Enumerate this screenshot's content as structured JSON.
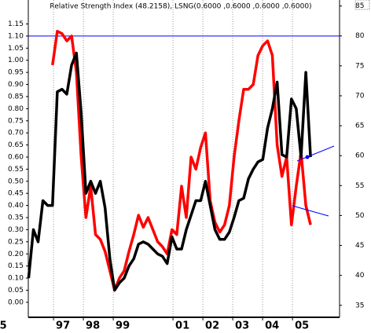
{
  "chart_data": {
    "type": "line",
    "title": "Relative Strength Index (48.2158), LSNG(0.6000 ,0.6000 ,0.6000 ,0.6000)",
    "x": [
      1995.85,
      1996.01,
      1996.17,
      1996.33,
      1996.49,
      1996.65,
      1996.81,
      1996.97,
      1997.13,
      1997.29,
      1997.45,
      1997.61,
      1997.77,
      1997.93,
      1998.09,
      1998.25,
      1998.41,
      1998.57,
      1998.73,
      1998.89,
      1999.05,
      1999.21,
      1999.37,
      1999.53,
      1999.69,
      1999.85,
      2000.01,
      2000.17,
      2000.33,
      2000.49,
      2000.65,
      2000.81,
      2000.97,
      2001.13,
      2001.29,
      2001.45,
      2001.61,
      2001.77,
      2001.93,
      2002.09,
      2002.25,
      2002.41,
      2002.57,
      2002.73,
      2002.89,
      2003.05,
      2003.21,
      2003.37,
      2003.53,
      2003.69,
      2003.85,
      2004.01,
      2004.17,
      2004.33,
      2004.49,
      2004.65,
      2004.81,
      2004.97,
      2005.13,
      2005.29
    ],
    "series": [
      {
        "color": "#ff0000",
        "values": [
          null,
          null,
          null,
          null,
          null,
          0.98,
          1.12,
          1.11,
          1.08,
          1.1,
          0.95,
          0.6,
          0.35,
          0.48,
          0.28,
          0.26,
          0.21,
          0.13,
          0.05,
          0.1,
          0.13,
          0.21,
          0.28,
          0.36,
          0.31,
          0.35,
          0.3,
          0.25,
          0.23,
          0.2,
          0.3,
          0.28,
          0.48,
          0.35,
          0.6,
          0.55,
          0.64,
          0.7,
          0.42,
          0.33,
          0.29,
          0.32,
          0.4,
          0.6,
          0.75,
          0.88,
          0.88,
          0.9,
          1.02,
          1.06,
          1.08,
          1.02,
          0.65,
          0.52,
          0.6,
          0.32,
          0.48,
          0.62,
          0.4,
          0.32
        ]
      },
      {
        "color": "#000000",
        "values": [
          0.1,
          0.3,
          0.25,
          0.42,
          0.4,
          0.4,
          0.87,
          0.88,
          0.86,
          0.98,
          1.03,
          0.78,
          0.45,
          0.5,
          0.45,
          0.5,
          0.39,
          0.18,
          0.05,
          0.08,
          0.1,
          0.15,
          0.18,
          0.24,
          0.25,
          0.24,
          0.22,
          0.2,
          0.19,
          0.16,
          0.27,
          0.22,
          0.22,
          0.3,
          0.36,
          0.42,
          0.42,
          0.5,
          0.4,
          0.3,
          0.26,
          0.26,
          0.29,
          0.35,
          0.42,
          0.43,
          0.51,
          0.55,
          0.58,
          0.59,
          0.72,
          0.8,
          0.91,
          0.61,
          0.6,
          0.84,
          0.8,
          0.6,
          0.95,
          0.6
        ]
      }
    ],
    "xlim": [
      1995.84,
      2006.26
    ],
    "xticks": [
      {
        "value": 1995,
        "label": "5"
      },
      {
        "value": 1997,
        "label": "97"
      },
      {
        "value": 1998,
        "label": "98"
      },
      {
        "value": 1999,
        "label": "99"
      },
      {
        "value": 2001,
        "label": "01"
      },
      {
        "value": 2002,
        "label": "02"
      },
      {
        "value": 2003,
        "label": "03"
      },
      {
        "value": 2004,
        "label": "04"
      },
      {
        "value": 2005,
        "label": "05"
      }
    ],
    "ylim": [
      -0.062,
      1.249
    ],
    "yticks": [
      {
        "value": 0,
        "label": "0.00"
      },
      {
        "value": 0.05,
        "label": "0.05"
      },
      {
        "value": 0.1,
        "label": "0.10"
      },
      {
        "value": 0.15,
        "label": "0.15"
      },
      {
        "value": 0.2,
        "label": "0.20"
      },
      {
        "value": 0.25,
        "label": "0.25"
      },
      {
        "value": 0.3,
        "label": "0.30"
      },
      {
        "value": 0.35,
        "label": "0.35"
      },
      {
        "value": 0.4,
        "label": "0.40"
      },
      {
        "value": 0.45,
        "label": "0.45"
      },
      {
        "value": 0.5,
        "label": "0.50"
      },
      {
        "value": 0.55,
        "label": "0.55"
      },
      {
        "value": 0.6,
        "label": "0.60"
      },
      {
        "value": 0.65,
        "label": "0.65"
      },
      {
        "value": 0.7,
        "label": "0.70"
      },
      {
        "value": 0.75,
        "label": "0.75"
      },
      {
        "value": 0.8,
        "label": "0.80"
      },
      {
        "value": 0.85,
        "label": "0.85"
      },
      {
        "value": 0.9,
        "label": "0.90"
      },
      {
        "value": 0.95,
        "label": "0.95"
      },
      {
        "value": 1,
        "label": "1.00"
      },
      {
        "value": 1.05,
        "label": "1.05"
      },
      {
        "value": 1.1,
        "label": "1.10"
      },
      {
        "value": 1.15,
        "label": "1.15"
      }
    ],
    "y2lim": [
      33.0,
      86.0
    ],
    "y2ticks": [
      35,
      40,
      45,
      50,
      55,
      60,
      65,
      70,
      75,
      80,
      85
    ],
    "hline": {
      "value": 1.1,
      "color": "#0000ff"
    },
    "grid": true
  }
}
